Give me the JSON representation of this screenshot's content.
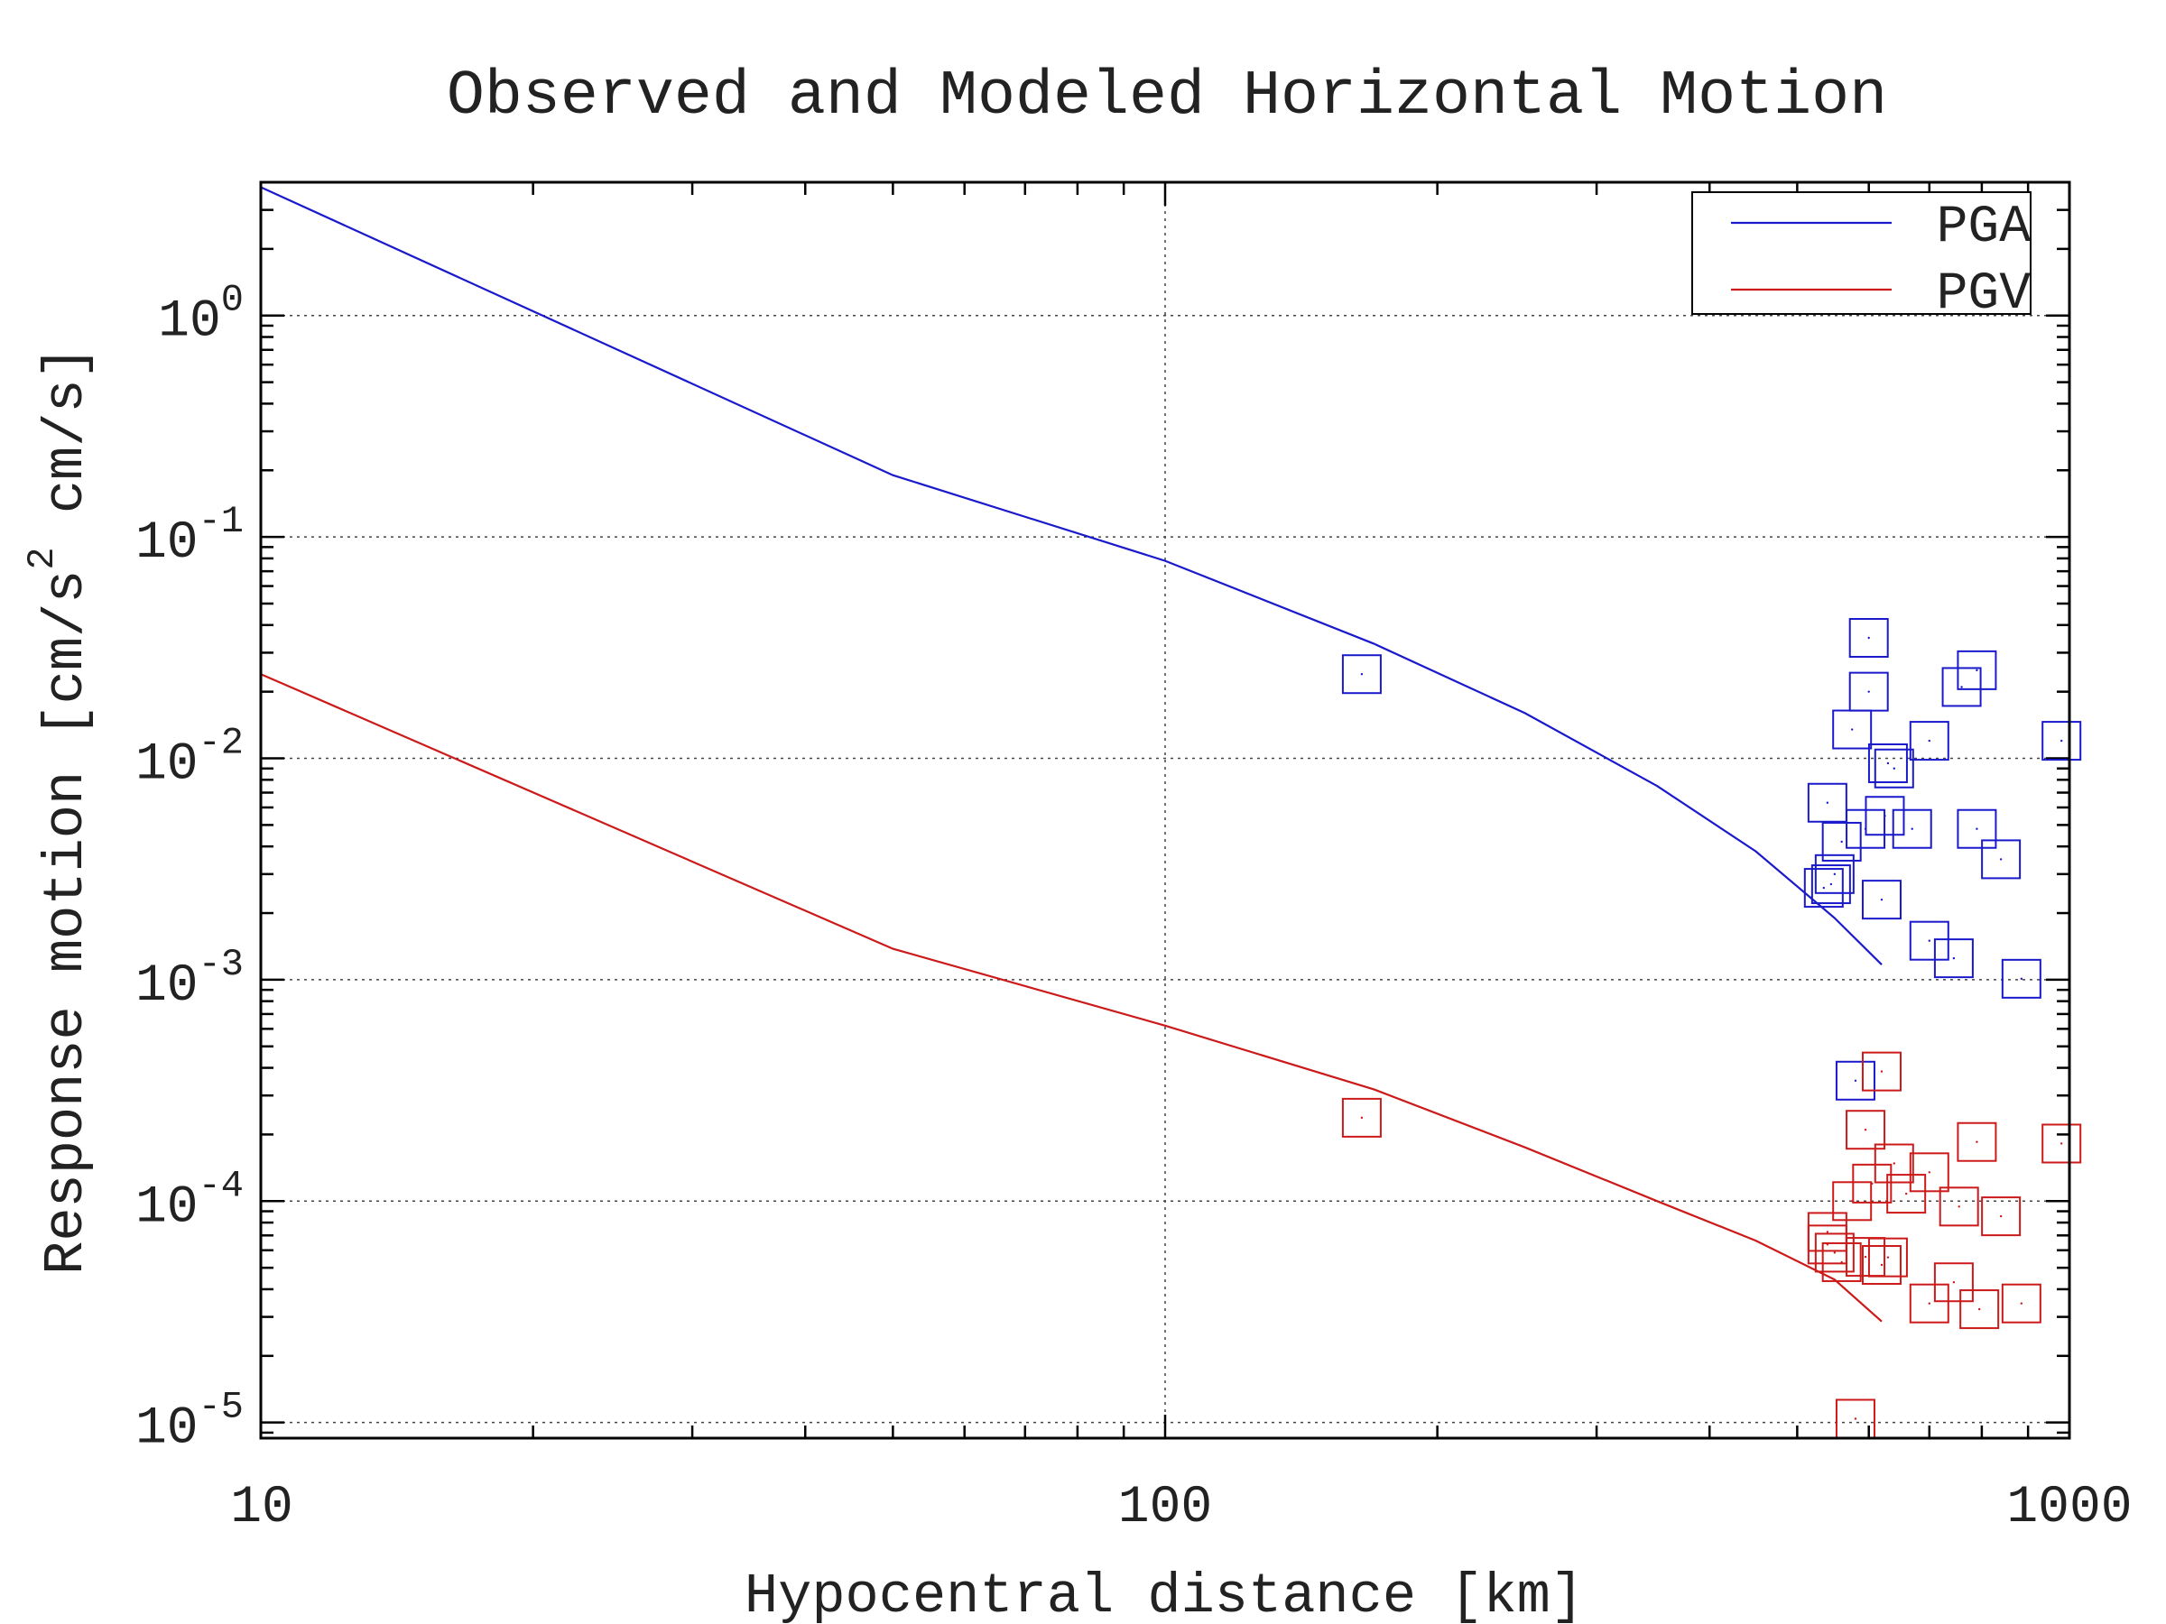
{
  "chart_data": {
    "type": "scatter",
    "title": "Observed and Modeled Horizontal Motion",
    "xlabel": "Hypocentral distance [km]",
    "ylabel": {
      "pre": "Response motion [cm/s",
      "sup": "2",
      "post": " cm/s]"
    },
    "x_scale": "log",
    "y_scale": "log",
    "xlim": [
      10,
      1000
    ],
    "ylim": [
      8.5e-06,
      4
    ],
    "grid": true,
    "legend_position": "top-right",
    "x_ticks": [
      {
        "value": 10,
        "label": "10"
      },
      {
        "value": 100,
        "label": "100"
      },
      {
        "value": 1000,
        "label": "1000"
      }
    ],
    "y_ticks": [
      {
        "value": 1,
        "base": "10",
        "exp": "0"
      },
      {
        "value": 0.1,
        "base": "10",
        "exp": "-1"
      },
      {
        "value": 0.01,
        "base": "10",
        "exp": "-2"
      },
      {
        "value": 0.001,
        "base": "10",
        "exp": "-3"
      },
      {
        "value": 0.0001,
        "base": "10",
        "exp": "-4"
      },
      {
        "value": 1e-05,
        "base": "10",
        "exp": "-5"
      }
    ],
    "series": [
      {
        "name": "PGA",
        "color": "#1a1acc",
        "line": [
          [
            10,
            3.8
          ],
          [
            50,
            0.19
          ],
          [
            100,
            0.078
          ],
          [
            170,
            0.033
          ],
          [
            250,
            0.016
          ],
          [
            350,
            0.0075
          ],
          [
            450,
            0.0038
          ],
          [
            550,
            0.0019
          ],
          [
            620,
            0.00117
          ]
        ],
        "points": [
          [
            165,
            0.024
          ],
          [
            600,
            0.035
          ],
          [
            600,
            0.02
          ],
          [
            575,
            0.0135
          ],
          [
            630,
            0.0095
          ],
          [
            640,
            0.009
          ],
          [
            700,
            0.012
          ],
          [
            760,
            0.021
          ],
          [
            790,
            0.025
          ],
          [
            980,
            0.012
          ],
          [
            540,
            0.0063
          ],
          [
            625,
            0.0055
          ],
          [
            560,
            0.0042
          ],
          [
            595,
            0.0048
          ],
          [
            670,
            0.0048
          ],
          [
            790,
            0.0048
          ],
          [
            840,
            0.0035
          ],
          [
            550,
            0.003
          ],
          [
            545,
            0.0027
          ],
          [
            535,
            0.0026
          ],
          [
            620,
            0.0023
          ],
          [
            700,
            0.0015
          ],
          [
            745,
            0.00125
          ],
          [
            885,
            0.00101
          ],
          [
            580,
            0.00035
          ]
        ]
      },
      {
        "name": "PGV",
        "color": "#cc1a1a",
        "line": [
          [
            10,
            0.024
          ],
          [
            50,
            0.00138
          ],
          [
            100,
            0.00062
          ],
          [
            170,
            0.00032
          ],
          [
            250,
            0.000175
          ],
          [
            350,
            0.0001
          ],
          [
            450,
            6.63e-05
          ],
          [
            550,
            4.42e-05
          ],
          [
            620,
            2.86e-05
          ]
        ],
        "points": [
          [
            165,
            0.000238
          ],
          [
            620,
            0.000385
          ],
          [
            595,
            0.00021
          ],
          [
            640,
            0.000148
          ],
          [
            605,
            0.00012
          ],
          [
            660,
            0.000108
          ],
          [
            700,
            0.000135
          ],
          [
            790,
            0.000185
          ],
          [
            980,
            0.000182
          ],
          [
            575,
            0.0001
          ],
          [
            755,
            9.45e-05
          ],
          [
            840,
            8.54e-05
          ],
          [
            540,
            7.26e-05
          ],
          [
            540,
            6.37e-05
          ],
          [
            550,
            5.85e-05
          ],
          [
            560,
            5.3e-05
          ],
          [
            595,
            5.6e-05
          ],
          [
            620,
            5.15e-05
          ],
          [
            630,
            5.57e-05
          ],
          [
            745,
            4.3e-05
          ],
          [
            700,
            3.45e-05
          ],
          [
            795,
            3.25e-05
          ],
          [
            885,
            3.45e-05
          ],
          [
            580,
            1.04e-05
          ]
        ]
      }
    ]
  }
}
